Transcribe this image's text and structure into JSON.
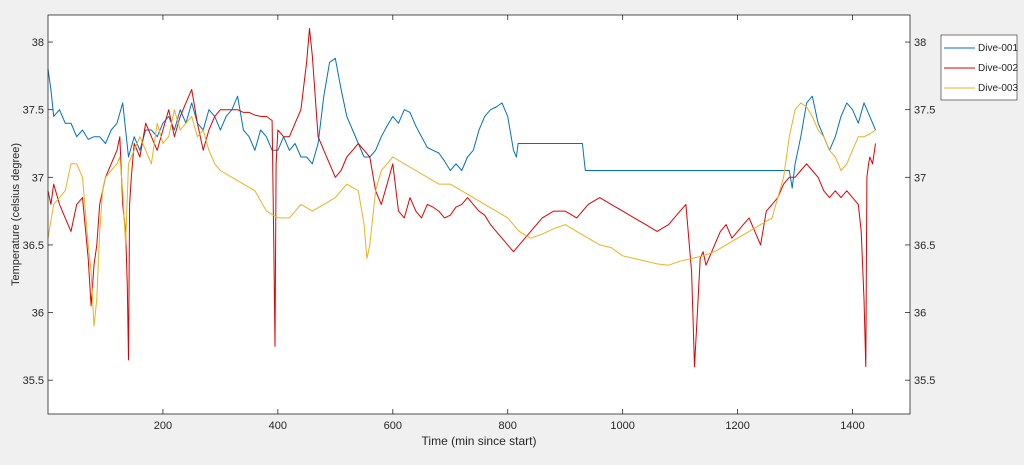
{
  "chart_data": {
    "type": "line",
    "xlabel": "Time (min since start)",
    "ylabel": "Temperature (celsius degree)",
    "xlim": [
      0,
      1500
    ],
    "ylim": [
      35.25,
      38.2
    ],
    "x_ticks": [
      "200",
      "400",
      "600",
      "800",
      "1000",
      "1200",
      "1400"
    ],
    "x_tick_values": [
      200,
      400,
      600,
      800,
      1000,
      1200,
      1400
    ],
    "y_ticks": [
      "35.5",
      "36",
      "36.5",
      "37",
      "37.5",
      "38"
    ],
    "y_tick_values": [
      35.5,
      36,
      36.5,
      37,
      37.5,
      38
    ],
    "right_axis_mirrored": true,
    "grid": false,
    "legend_position": "outside top-right",
    "series": [
      {
        "name": "Dive-001",
        "color": "#0072bd",
        "x": [
          0,
          5,
          10,
          20,
          30,
          40,
          50,
          60,
          70,
          80,
          90,
          100,
          110,
          120,
          130,
          140,
          150,
          160,
          170,
          180,
          190,
          200,
          210,
          220,
          230,
          240,
          250,
          260,
          270,
          280,
          290,
          300,
          310,
          320,
          330,
          340,
          350,
          360,
          370,
          380,
          390,
          400,
          410,
          420,
          430,
          440,
          450,
          460,
          470,
          480,
          490,
          500,
          510,
          520,
          530,
          540,
          550,
          560,
          570,
          580,
          590,
          600,
          610,
          620,
          630,
          640,
          650,
          660,
          670,
          680,
          690,
          700,
          710,
          720,
          730,
          740,
          750,
          760,
          770,
          780,
          790,
          800,
          810,
          815,
          818,
          820,
          840,
          860,
          880,
          900,
          930,
          935,
          940,
          960,
          1000,
          1050,
          1100,
          1150,
          1200,
          1250,
          1280,
          1290,
          1295,
          1300,
          1310,
          1320,
          1330,
          1340,
          1350,
          1360,
          1370,
          1380,
          1390,
          1400,
          1410,
          1420,
          1430,
          1440
        ],
        "y": [
          37.8,
          37.65,
          37.45,
          37.5,
          37.4,
          37.4,
          37.3,
          37.35,
          37.28,
          37.3,
          37.3,
          37.25,
          37.35,
          37.4,
          37.55,
          37.15,
          37.3,
          37.2,
          37.35,
          37.35,
          37.3,
          37.4,
          37.45,
          37.35,
          37.5,
          37.4,
          37.55,
          37.4,
          37.35,
          37.5,
          37.45,
          37.35,
          37.45,
          37.5,
          37.6,
          37.35,
          37.3,
          37.2,
          37.35,
          37.3,
          37.2,
          37.2,
          37.3,
          37.2,
          37.25,
          37.15,
          37.15,
          37.1,
          37.25,
          37.6,
          37.85,
          37.88,
          37.65,
          37.45,
          37.35,
          37.25,
          37.15,
          37.15,
          37.2,
          37.3,
          37.38,
          37.45,
          37.4,
          37.5,
          37.48,
          37.38,
          37.3,
          37.22,
          37.2,
          37.18,
          37.12,
          37.05,
          37.1,
          37.05,
          37.15,
          37.2,
          37.35,
          37.45,
          37.5,
          37.52,
          37.55,
          37.45,
          37.2,
          37.15,
          37.25,
          37.25,
          37.25,
          37.25,
          37.25,
          37.25,
          37.25,
          37.05,
          37.05,
          37.05,
          37.05,
          37.05,
          37.05,
          37.05,
          37.05,
          37.05,
          37.05,
          37.05,
          36.92,
          37.1,
          37.3,
          37.55,
          37.6,
          37.4,
          37.3,
          37.2,
          37.3,
          37.45,
          37.55,
          37.5,
          37.4,
          37.55,
          37.45,
          37.35
        ]
      },
      {
        "name": "Dive-002",
        "color": "#e00000",
        "x": [
          0,
          5,
          10,
          20,
          30,
          40,
          50,
          60,
          70,
          75,
          80,
          85,
          90,
          95,
          100,
          110,
          120,
          125,
          130,
          135,
          138,
          140,
          142,
          145,
          150,
          160,
          170,
          180,
          190,
          200,
          210,
          220,
          230,
          240,
          250,
          260,
          270,
          280,
          290,
          300,
          310,
          320,
          330,
          340,
          350,
          360,
          370,
          380,
          390,
          393,
          395,
          397,
          400,
          410,
          420,
          430,
          440,
          450,
          455,
          460,
          470,
          480,
          490,
          500,
          510,
          520,
          530,
          540,
          550,
          560,
          570,
          580,
          590,
          600,
          610,
          620,
          630,
          640,
          650,
          660,
          670,
          680,
          690,
          700,
          710,
          720,
          730,
          740,
          750,
          760,
          770,
          780,
          790,
          800,
          810,
          820,
          830,
          840,
          850,
          860,
          880,
          900,
          920,
          940,
          960,
          980,
          1000,
          1020,
          1040,
          1060,
          1080,
          1100,
          1110,
          1120,
          1125,
          1130,
          1135,
          1140,
          1145,
          1150,
          1160,
          1170,
          1180,
          1190,
          1200,
          1210,
          1220,
          1230,
          1240,
          1250,
          1260,
          1270,
          1280,
          1290,
          1300,
          1310,
          1320,
          1330,
          1340,
          1350,
          1360,
          1370,
          1380,
          1390,
          1400,
          1410,
          1415,
          1420,
          1423,
          1425,
          1428,
          1430,
          1435,
          1440
        ],
        "y": [
          36.9,
          36.8,
          36.95,
          36.8,
          36.7,
          36.6,
          36.8,
          36.85,
          36.4,
          36.05,
          36.35,
          36.5,
          36.8,
          36.9,
          37.0,
          37.1,
          37.2,
          37.3,
          36.8,
          36.6,
          36.2,
          35.65,
          36.8,
          37.0,
          37.25,
          37.15,
          37.4,
          37.3,
          37.2,
          37.35,
          37.5,
          37.3,
          37.45,
          37.55,
          37.65,
          37.4,
          37.2,
          37.35,
          37.45,
          37.5,
          37.5,
          37.5,
          37.5,
          37.48,
          37.48,
          37.46,
          37.45,
          37.45,
          37.42,
          36.5,
          35.75,
          37.1,
          37.35,
          37.3,
          37.3,
          37.4,
          37.5,
          37.85,
          38.1,
          37.9,
          37.3,
          37.2,
          37.1,
          37.0,
          37.05,
          37.15,
          37.2,
          37.25,
          37.2,
          37.15,
          36.9,
          36.8,
          36.95,
          37.1,
          36.75,
          36.7,
          36.85,
          36.75,
          36.7,
          36.8,
          36.78,
          36.75,
          36.7,
          36.72,
          36.78,
          36.8,
          36.85,
          36.8,
          36.75,
          36.72,
          36.65,
          36.6,
          36.55,
          36.5,
          36.45,
          36.5,
          36.55,
          36.6,
          36.65,
          36.7,
          36.75,
          36.75,
          36.7,
          36.8,
          36.85,
          36.8,
          36.75,
          36.7,
          36.65,
          36.6,
          36.65,
          36.75,
          36.8,
          36.3,
          35.6,
          36.0,
          36.4,
          36.45,
          36.35,
          36.4,
          36.5,
          36.6,
          36.65,
          36.55,
          36.6,
          36.65,
          36.7,
          36.6,
          36.5,
          36.75,
          36.8,
          36.85,
          36.95,
          37.0,
          37.0,
          37.05,
          37.1,
          37.05,
          37.0,
          36.9,
          36.85,
          36.9,
          36.85,
          36.9,
          36.85,
          36.8,
          36.6,
          36.1,
          35.6,
          37.0,
          37.1,
          37.15,
          37.1,
          37.25
        ]
      },
      {
        "name": "Dive-003",
        "color": "#edb120",
        "x": [
          0,
          10,
          20,
          30,
          40,
          50,
          60,
          70,
          75,
          80,
          85,
          90,
          95,
          100,
          110,
          120,
          125,
          130,
          135,
          140,
          145,
          150,
          160,
          170,
          180,
          190,
          200,
          210,
          220,
          230,
          240,
          250,
          260,
          270,
          280,
          290,
          300,
          320,
          340,
          360,
          380,
          400,
          420,
          440,
          460,
          480,
          500,
          520,
          540,
          550,
          555,
          560,
          570,
          580,
          590,
          600,
          620,
          640,
          660,
          680,
          700,
          720,
          740,
          760,
          780,
          800,
          820,
          840,
          860,
          880,
          900,
          920,
          940,
          960,
          980,
          1000,
          1020,
          1040,
          1060,
          1080,
          1100,
          1120,
          1140,
          1160,
          1180,
          1200,
          1220,
          1240,
          1260,
          1270,
          1280,
          1290,
          1300,
          1310,
          1320,
          1330,
          1340,
          1350,
          1360,
          1370,
          1380,
          1390,
          1400,
          1410,
          1420,
          1430,
          1440
        ],
        "y": [
          36.55,
          36.8,
          36.85,
          36.9,
          37.1,
          37.1,
          37.0,
          36.5,
          36.3,
          35.9,
          36.1,
          36.6,
          36.9,
          37.0,
          37.05,
          37.1,
          37.15,
          36.9,
          36.5,
          37.1,
          37.15,
          37.2,
          37.3,
          37.2,
          37.1,
          37.4,
          37.25,
          37.3,
          37.5,
          37.35,
          37.4,
          37.45,
          37.3,
          37.35,
          37.2,
          37.1,
          37.05,
          37.0,
          36.95,
          36.9,
          36.75,
          36.7,
          36.7,
          36.8,
          36.75,
          36.8,
          36.85,
          36.95,
          36.9,
          36.65,
          36.4,
          36.5,
          36.9,
          37.05,
          37.1,
          37.15,
          37.1,
          37.05,
          37.0,
          36.95,
          36.95,
          36.9,
          36.85,
          36.8,
          36.75,
          36.7,
          36.6,
          36.55,
          36.58,
          36.62,
          36.65,
          36.6,
          36.55,
          36.5,
          36.48,
          36.42,
          36.4,
          36.38,
          36.36,
          36.35,
          36.38,
          36.4,
          36.42,
          36.45,
          36.5,
          36.55,
          36.6,
          36.65,
          36.7,
          36.85,
          37.0,
          37.3,
          37.5,
          37.55,
          37.52,
          37.45,
          37.35,
          37.3,
          37.2,
          37.15,
          37.05,
          37.1,
          37.2,
          37.3,
          37.3,
          37.32,
          37.35
        ]
      }
    ]
  }
}
